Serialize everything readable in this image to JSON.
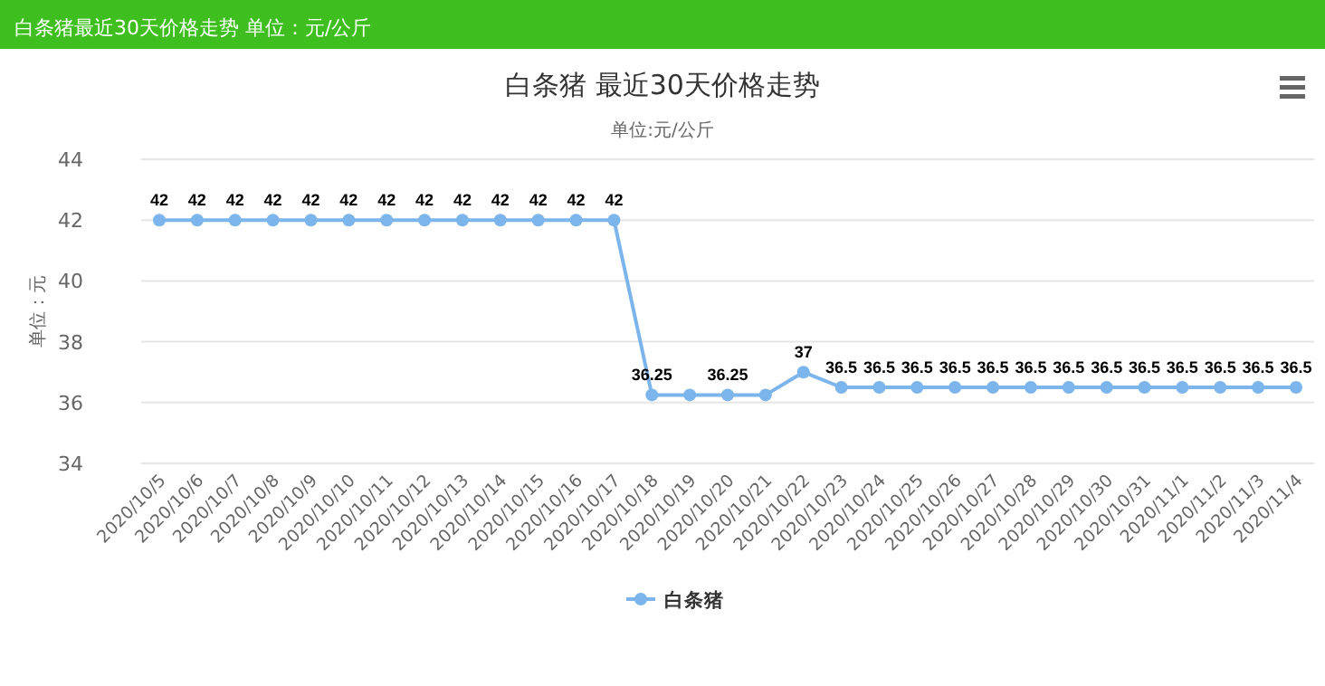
{
  "chart_data": {
    "type": "line",
    "title": "白条猪 最近30天价格走势",
    "subtitle": "单位:元/公斤",
    "ylabel": "单位：元",
    "annotations": [
      "白条猪最近30天价格走势 单位：元/公斤"
    ],
    "categories": [
      "2020/10/5",
      "2020/10/6",
      "2020/10/7",
      "2020/10/8",
      "2020/10/9",
      "2020/10/10",
      "2020/10/11",
      "2020/10/12",
      "2020/10/13",
      "2020/10/14",
      "2020/10/15",
      "2020/10/16",
      "2020/10/17",
      "2020/10/18",
      "2020/10/19",
      "2020/10/20",
      "2020/10/21",
      "2020/10/22",
      "2020/10/23",
      "2020/10/24",
      "2020/10/25",
      "2020/10/26",
      "2020/10/27",
      "2020/10/28",
      "2020/10/29",
      "2020/10/30",
      "2020/10/31",
      "2020/11/1",
      "2020/11/2",
      "2020/11/3",
      "2020/11/4"
    ],
    "series": [
      {
        "name": "白条猪",
        "color": "#7cb5ec",
        "values": [
          42,
          42,
          42,
          42,
          42,
          42,
          42,
          42,
          42,
          42,
          42,
          42,
          42,
          36.25,
          36.25,
          36.25,
          36.25,
          37,
          36.5,
          36.5,
          36.5,
          36.5,
          36.5,
          36.5,
          36.5,
          36.5,
          36.5,
          36.5,
          36.5,
          36.5,
          36.5
        ],
        "value_labels": [
          "42",
          "42",
          "42",
          "42",
          "42",
          "42",
          "42",
          "42",
          "42",
          "42",
          "42",
          "42",
          "42",
          "36.25",
          null,
          "36.25",
          null,
          "37",
          "36.5",
          "36.5",
          "36.5",
          "36.5",
          "36.5",
          "36.5",
          "36.5",
          "36.5",
          "36.5",
          "36.5",
          "36.5",
          "36.5",
          "36.5"
        ]
      }
    ],
    "ylim": [
      34,
      44
    ],
    "yticks": [
      34,
      36,
      38,
      40,
      42,
      44
    ],
    "grid": "y",
    "legend": "bottom",
    "marker": "circle"
  }
}
